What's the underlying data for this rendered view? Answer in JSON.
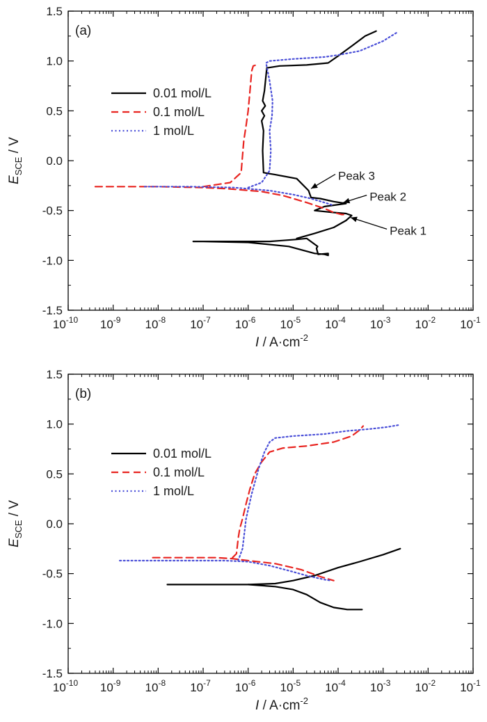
{
  "chart_data": [
    {
      "type": "line",
      "panel_label": "(a)",
      "x_scale": "log",
      "xlim": [
        1e-10,
        0.1
      ],
      "ylim": [
        -1.5,
        1.5
      ],
      "xlabel": {
        "main": "I",
        "unit": " / A·cm",
        "exp": "-2"
      },
      "ylabel": {
        "main": "E",
        "sub": "SCE",
        "unit": " / V"
      },
      "x_ticks": [
        {
          "base": "10",
          "exp": "-10"
        },
        {
          "base": "10",
          "exp": "-9"
        },
        {
          "base": "10",
          "exp": "-8"
        },
        {
          "base": "10",
          "exp": "-7"
        },
        {
          "base": "10",
          "exp": "-6"
        },
        {
          "base": "10",
          "exp": "-5"
        },
        {
          "base": "10",
          "exp": "-4"
        },
        {
          "base": "10",
          "exp": "-3"
        },
        {
          "base": "10",
          "exp": "-2"
        },
        {
          "base": "10",
          "exp": "-1"
        }
      ],
      "y_ticks": [
        "-1.5",
        "-1.0",
        "-0.5",
        "0.0",
        "0.5",
        "1.0",
        "1.5"
      ],
      "grid": false,
      "legend_position": "upper-left",
      "series": [
        {
          "name": "0.01 mol/L",
          "color": "#000000",
          "style": "solid",
          "x": [
            6e-08,
            2e-07,
            6e-07,
            1.5e-06,
            3e-06,
            6e-06,
            1.2e-05,
            2e-05,
            3.5e-05,
            3.3e-05,
            3.6e-05,
            6e-05,
            6e-05,
            5e-05,
            3e-05,
            8e-06,
            1e-06,
            1e-07,
            6e-08
          ],
          "y": [
            -0.81,
            -0.81,
            -0.81,
            -0.81,
            -0.81,
            -0.8,
            -0.79,
            -0.78,
            -0.86,
            -0.88,
            -0.94,
            -0.93,
            -0.95,
            -0.94,
            -0.93,
            -0.86,
            -0.82,
            -0.81,
            -0.81
          ]
        },
        {
          "name": "0.01 mol/L (anodic)",
          "color": "#000000",
          "style": "solid",
          "x": [
            1.2e-05,
            3e-05,
            8e-05,
            0.00015,
            0.0002,
            0.00015,
            8e-05,
            3e-05,
            5e-05,
            0.00015,
            8e-05,
            4e-05,
            2.5e-05,
            2.2e-05,
            1.2e-05,
            4e-06,
            2.2e-06,
            2.1e-06,
            2.2e-06,
            2e-06,
            2.3e-06,
            2e-06,
            2.4e-06,
            2.1e-06,
            2.3e-06,
            2.6e-06,
            5e-06,
            2e-05,
            6e-05,
            0.0001,
            0.0002,
            0.0004,
            0.0007
          ],
          "y": [
            -0.78,
            -0.73,
            -0.67,
            -0.6,
            -0.55,
            -0.53,
            -0.52,
            -0.5,
            -0.46,
            -0.43,
            -0.41,
            -0.38,
            -0.37,
            -0.3,
            -0.18,
            -0.14,
            -0.12,
            0.1,
            0.3,
            0.4,
            0.45,
            0.5,
            0.55,
            0.6,
            0.7,
            0.93,
            0.95,
            0.96,
            0.98,
            1.05,
            1.15,
            1.25,
            1.3
          ]
        },
        {
          "name": "0.1 mol/L",
          "color": "#e8231f",
          "style": "dashed",
          "x": [
            4e-10,
            1e-09,
            1e-08,
            1e-07,
            3e-07,
            6e-07,
            2e-06,
            6e-06,
            2e-05,
            5e-05,
            8e-05,
            0.00012,
            0.00014
          ],
          "y": [
            -0.26,
            -0.26,
            -0.26,
            -0.27,
            -0.28,
            -0.29,
            -0.31,
            -0.35,
            -0.42,
            -0.48,
            -0.52,
            -0.54,
            -0.54
          ]
        },
        {
          "name": "0.1 mol/L (anodic)",
          "color": "#e8231f",
          "style": "dashed",
          "x": [
            1e-07,
            4e-07,
            7e-07,
            7.5e-07,
            8e-07,
            9e-07,
            1e-06,
            1.1e-06,
            1.2e-06,
            1.3e-06,
            1.5e-06
          ],
          "y": [
            -0.26,
            -0.22,
            -0.12,
            0.05,
            0.2,
            0.35,
            0.5,
            0.7,
            0.9,
            0.95,
            0.96
          ]
        },
        {
          "name": "1 mol/L",
          "color": "#4a4fd8",
          "style": "dotted",
          "x": [
            5e-09,
            5e-08,
            5e-07,
            3e-06,
            1e-05,
            2.5e-05,
            5e-05,
            8e-05
          ],
          "y": [
            -0.26,
            -0.26,
            -0.27,
            -0.3,
            -0.34,
            -0.38,
            -0.42,
            -0.45
          ]
        },
        {
          "name": "1 mol/L (anodic)",
          "color": "#4a4fd8",
          "style": "dotted",
          "x": [
            1e-06,
            2e-06,
            3e-06,
            3.2e-06,
            3e-06,
            3.4e-06,
            3.5e-06,
            3e-06,
            2.5e-06,
            3e-06,
            1e-05,
            5e-05,
            0.0001,
            0.0003,
            0.001,
            0.0021
          ],
          "y": [
            -0.27,
            -0.22,
            -0.1,
            0.1,
            0.3,
            0.45,
            0.6,
            0.8,
            0.98,
            1.0,
            1.02,
            1.04,
            1.06,
            1.1,
            1.2,
            1.29
          ]
        }
      ],
      "legend": [
        "0.01 mol/L",
        "0.1 mol/L",
        "1 mol/L"
      ],
      "annotations": [
        {
          "text": "Peak 3",
          "tip": [
            2.5e-05,
            -0.28
          ],
          "label": [
            0.0001,
            -0.15
          ]
        },
        {
          "text": "Peak 2",
          "tip": [
            0.00013,
            -0.42
          ],
          "label": [
            0.0005,
            -0.36
          ]
        },
        {
          "text": "Peak 1",
          "tip": [
            0.00019,
            -0.57
          ],
          "label": [
            0.0014,
            -0.7
          ]
        }
      ]
    },
    {
      "type": "line",
      "panel_label": "(b)",
      "x_scale": "log",
      "xlim": [
        1e-10,
        0.1
      ],
      "ylim": [
        -1.5,
        1.5
      ],
      "xlabel": {
        "main": "I",
        "unit": " / A·cm",
        "exp": "-2"
      },
      "ylabel": {
        "main": "E",
        "sub": "SCE",
        "unit": " / V"
      },
      "x_ticks": [
        {
          "base": "10",
          "exp": "-10"
        },
        {
          "base": "10",
          "exp": "-9"
        },
        {
          "base": "10",
          "exp": "-8"
        },
        {
          "base": "10",
          "exp": "-7"
        },
        {
          "base": "10",
          "exp": "-6"
        },
        {
          "base": "10",
          "exp": "-5"
        },
        {
          "base": "10",
          "exp": "-4"
        },
        {
          "base": "10",
          "exp": "-3"
        },
        {
          "base": "10",
          "exp": "-2"
        },
        {
          "base": "10",
          "exp": "-1"
        }
      ],
      "y_ticks": [
        "-1.5",
        "-1.0",
        "-0.5",
        "0.0",
        "0.5",
        "1.0",
        "1.5"
      ],
      "grid": false,
      "legend_position": "upper-left",
      "series": [
        {
          "name": "0.01 mol/L",
          "color": "#000000",
          "style": "solid",
          "x": [
            1.6e-08,
            1e-07,
            1e-06,
            4e-06,
            1e-05,
            2e-05,
            4e-05,
            8e-05,
            0.00016,
            0.00034
          ],
          "y": [
            -0.61,
            -0.61,
            -0.61,
            -0.63,
            -0.66,
            -0.71,
            -0.79,
            -0.84,
            -0.86,
            -0.86
          ]
        },
        {
          "name": "0.01 mol/L (anodic)",
          "color": "#000000",
          "style": "solid",
          "x": [
            1e-06,
            4e-06,
            1e-05,
            3e-05,
            0.0001,
            0.0003,
            0.001,
            0.0024
          ],
          "y": [
            -0.61,
            -0.6,
            -0.57,
            -0.52,
            -0.44,
            -0.38,
            -0.31,
            -0.25
          ]
        },
        {
          "name": "0.1 mol/L",
          "color": "#e8231f",
          "style": "dashed",
          "x": [
            7.6e-09,
            5e-08,
            2e-07,
            4.5e-07,
            1e-06,
            4e-06,
            1.5e-05,
            4e-05,
            8e-05
          ],
          "y": [
            -0.34,
            -0.34,
            -0.34,
            -0.35,
            -0.37,
            -0.4,
            -0.46,
            -0.53,
            -0.57
          ]
        },
        {
          "name": "0.1 mol/L (anodic)",
          "color": "#e8231f",
          "style": "dashed",
          "x": [
            4.5e-07,
            5.5e-07,
            6e-07,
            6.5e-07,
            7.5e-07,
            9e-07,
            1.1e-06,
            1.4e-06,
            2e-06,
            3e-06,
            6e-06,
            2e-05,
            8e-05,
            0.0002,
            0.0003,
            0.00036
          ],
          "y": [
            -0.34,
            -0.3,
            -0.15,
            -0.05,
            0.05,
            0.2,
            0.35,
            0.5,
            0.62,
            0.72,
            0.76,
            0.78,
            0.82,
            0.88,
            0.94,
            0.98
          ]
        },
        {
          "name": "1 mol/L",
          "color": "#4a4fd8",
          "style": "dotted",
          "x": [
            1.4e-09,
            1e-08,
            1e-07,
            3e-07,
            1e-06,
            3e-06,
            8e-06,
            2e-05,
            5e-05,
            7e-05
          ],
          "y": [
            -0.37,
            -0.37,
            -0.37,
            -0.37,
            -0.38,
            -0.42,
            -0.47,
            -0.52,
            -0.56,
            -0.57
          ]
        },
        {
          "name": "1 mol/L (anodic)",
          "color": "#4a4fd8",
          "style": "dotted",
          "x": [
            6e-07,
            7.5e-07,
            9e-07,
            1.2e-06,
            1.7e-06,
            2.3e-06,
            3e-06,
            4e-06,
            1e-05,
            5e-05,
            0.00015,
            0.0005,
            0.0012,
            0.0022
          ],
          "y": [
            -0.37,
            -0.25,
            0.05,
            0.3,
            0.55,
            0.72,
            0.82,
            0.86,
            0.88,
            0.9,
            0.93,
            0.95,
            0.97,
            0.99
          ]
        }
      ],
      "legend": [
        "0.01 mol/L",
        "0.1 mol/L",
        "1 mol/L"
      ],
      "annotations": []
    }
  ]
}
